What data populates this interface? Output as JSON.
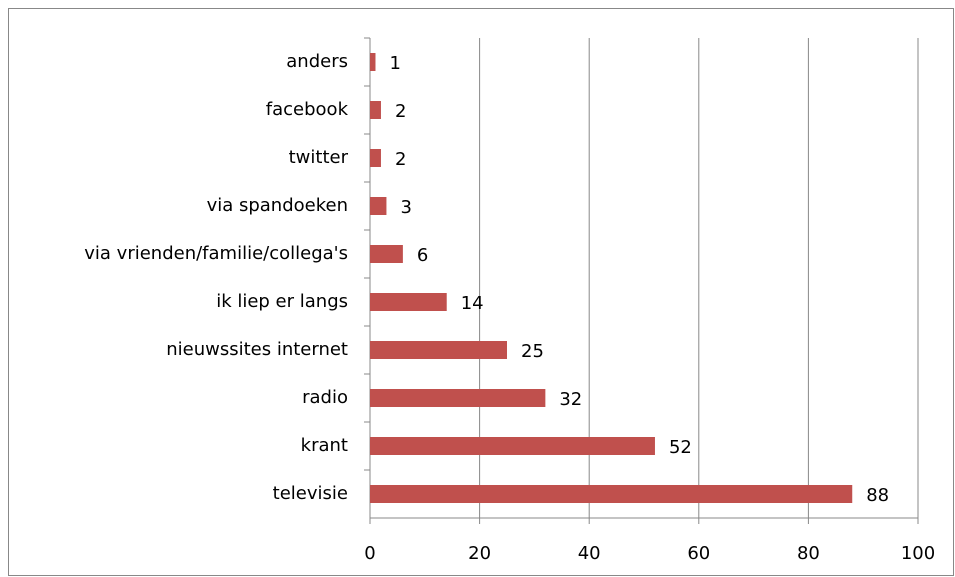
{
  "chart_data": {
    "type": "bar",
    "orientation": "horizontal",
    "categories": [
      "anders",
      "facebook",
      "twitter",
      "via spandoeken",
      "via vrienden/familie/collega's",
      "ik liep er langs",
      "nieuwssites internet",
      "radio",
      "krant",
      "televisie"
    ],
    "values": [
      1,
      2,
      2,
      3,
      6,
      14,
      25,
      32,
      52,
      88
    ],
    "color": "#c0504d",
    "xlim": [
      0,
      100
    ],
    "xticks": [
      0,
      20,
      40,
      60,
      80,
      100
    ],
    "grid": true
  }
}
